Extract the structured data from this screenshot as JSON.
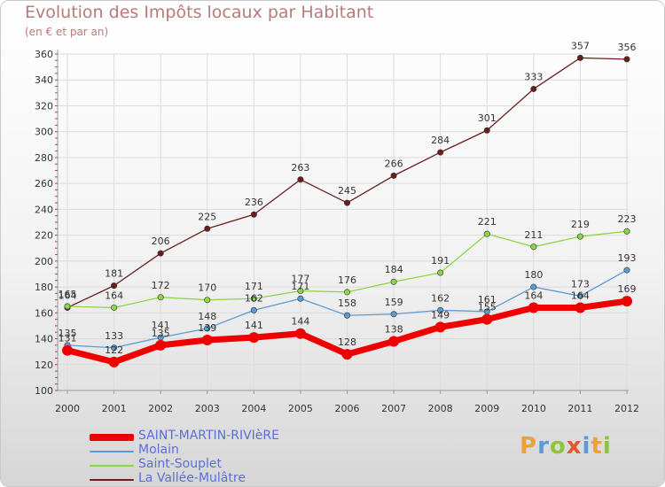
{
  "header": {
    "title": "Evolution des Impôts locaux par Habitant",
    "subtitle": "(en € et par an)"
  },
  "logo": {
    "text": "Proxiti",
    "colors": [
      "#e8a33c",
      "#5b9bd5",
      "#8cc63f",
      "#e05a2b",
      "#5b9bd5",
      "#e8a33c",
      "#8cc63f"
    ]
  },
  "chart_data": {
    "type": "line",
    "categories": [
      "2000",
      "2001",
      "2002",
      "2003",
      "2004",
      "2005",
      "2006",
      "2007",
      "2008",
      "2009",
      "2010",
      "2011",
      "2012"
    ],
    "ylim": [
      100,
      360
    ],
    "yticks": [
      100,
      120,
      140,
      160,
      180,
      200,
      220,
      240,
      260,
      280,
      300,
      320,
      340,
      360
    ],
    "grid": true,
    "legend_position": "bottom-left",
    "series": [
      {
        "name": "SAINT-MARTIN-RIVIèRE",
        "color": "#ee0000",
        "values": [
          131,
          122,
          135,
          139,
          141,
          144,
          128,
          138,
          149,
          155,
          164,
          164,
          169
        ]
      },
      {
        "name": "Molain",
        "color": "#5b9bd5",
        "values": [
          135,
          133,
          141,
          148,
          162,
          171,
          158,
          159,
          162,
          161,
          180,
          173,
          193
        ]
      },
      {
        "name": "Saint-Souplet",
        "color": "#8cd645",
        "values": [
          165,
          164,
          172,
          170,
          171,
          177,
          176,
          184,
          191,
          221,
          211,
          219,
          223
        ]
      },
      {
        "name": "La Vallée-Mulâtre",
        "color": "#6b1d1d",
        "values": [
          164,
          181,
          206,
          225,
          236,
          263,
          245,
          266,
          284,
          301,
          333,
          357,
          356
        ]
      }
    ]
  }
}
